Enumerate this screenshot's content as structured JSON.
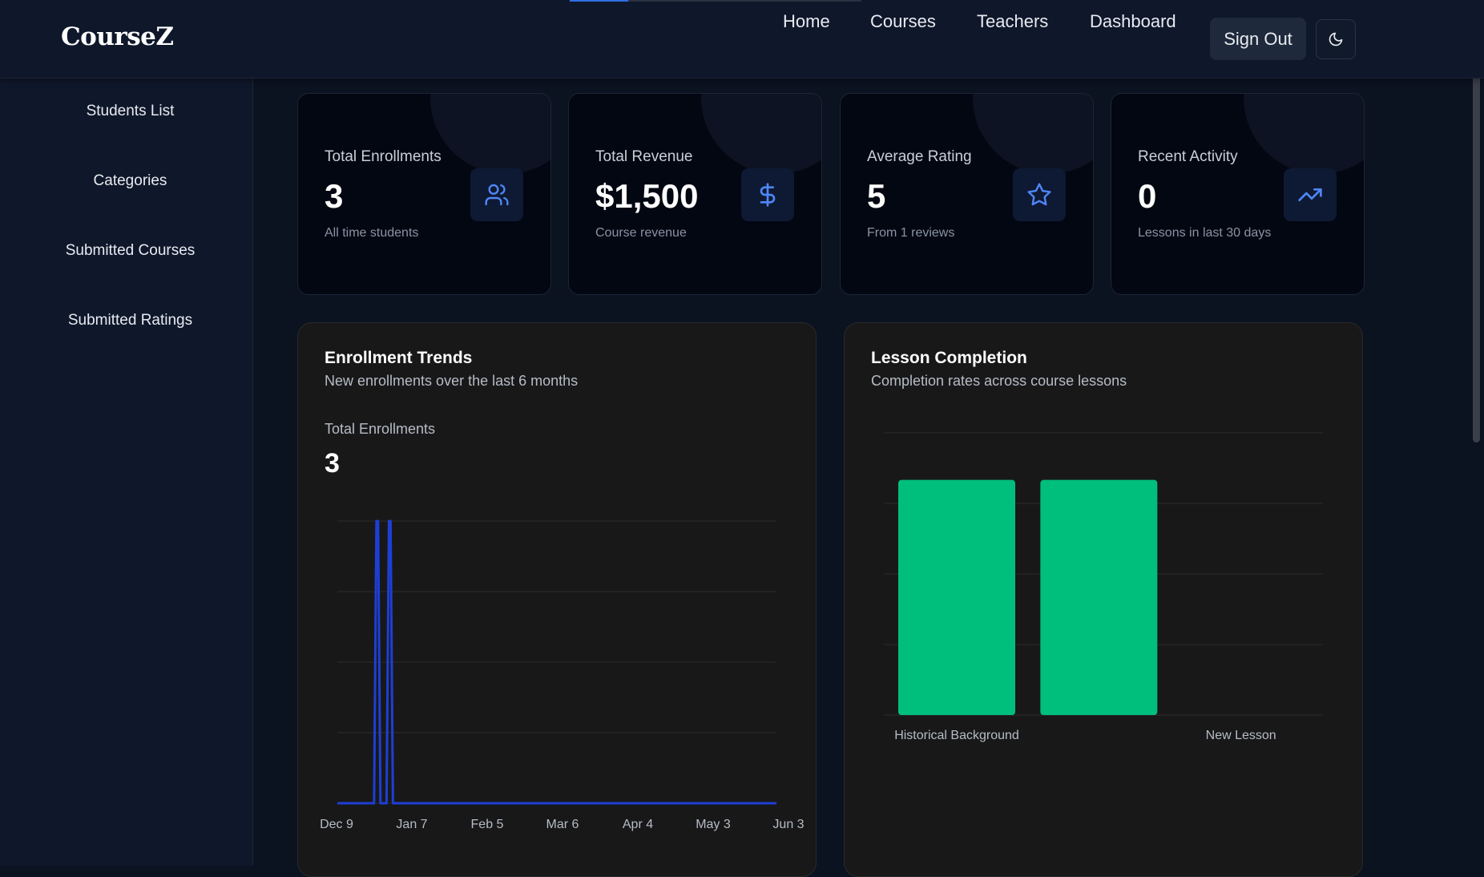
{
  "header": {
    "logo": "CourseZ",
    "nav": [
      "Home",
      "Courses",
      "Teachers",
      "Dashboard"
    ],
    "sign_out": "Sign Out",
    "theme_icon": "moon-icon"
  },
  "sidebar": {
    "items": [
      "Students List",
      "Categories",
      "Submitted Courses",
      "Submitted Ratings"
    ]
  },
  "stats": [
    {
      "label": "Total Enrollments",
      "value": "3",
      "sub": "All time students",
      "icon": "users-icon"
    },
    {
      "label": "Total Revenue",
      "value": "$1,500",
      "sub": "Course revenue",
      "icon": "dollar-icon"
    },
    {
      "label": "Average Rating",
      "value": "5",
      "sub": "From 1 reviews",
      "icon": "star-icon"
    },
    {
      "label": "Recent Activity",
      "value": "0",
      "sub": "Lessons in last 30 days",
      "icon": "trending-up-icon"
    }
  ],
  "enrollment": {
    "title": "Enrollment Trends",
    "subtitle": "New enrollments over the last 6 months",
    "total_label": "Total Enrollments",
    "total_value": "3"
  },
  "lessons": {
    "title": "Lesson Completion",
    "subtitle": "Completion rates across course lessons"
  },
  "colors": {
    "line": "#1d3fd6",
    "bar": "#00bf7d",
    "accent_icon": "#4f86f7"
  },
  "chart_data": [
    {
      "type": "line",
      "title": "Enrollment Trends",
      "x_ticks": [
        "Dec 9",
        "Jan 7",
        "Feb 5",
        "Mar 6",
        "Apr 4",
        "May 3",
        "Jun 3"
      ],
      "x_range": [
        "Dec 9",
        "Jun 3"
      ],
      "ylim": [
        0,
        1
      ],
      "grid": true,
      "spikes": [
        {
          "x": "Dec 25",
          "y": 1
        },
        {
          "x": "Dec 30",
          "y": 1
        }
      ],
      "baseline": 0
    },
    {
      "type": "bar",
      "title": "Lesson Completion",
      "categories": [
        "Historical Background",
        "",
        "New Lesson"
      ],
      "values": [
        1,
        1,
        0
      ],
      "ylim": [
        0,
        1.2
      ],
      "grid": true
    }
  ]
}
